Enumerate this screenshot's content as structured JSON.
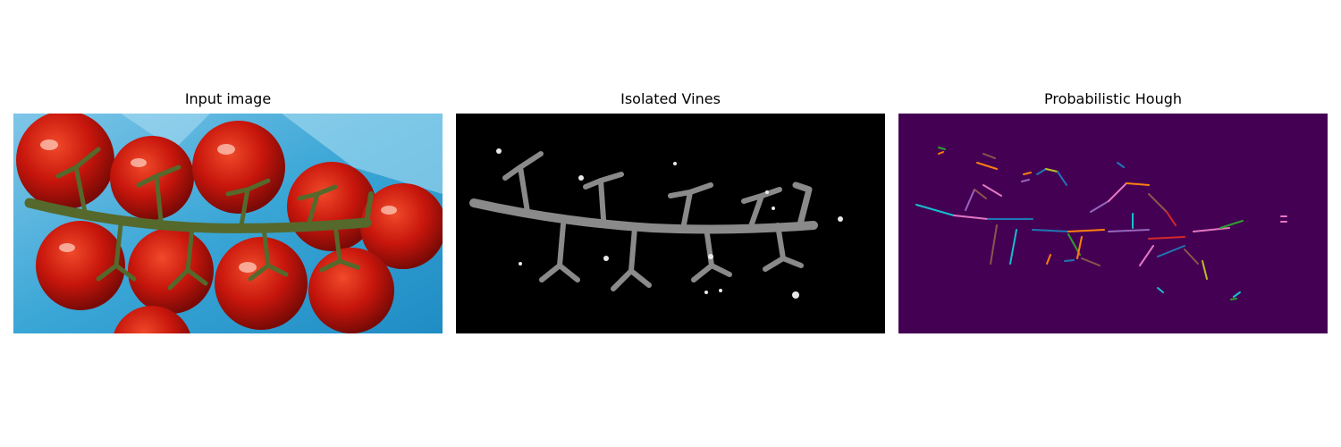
{
  "figure": {
    "panels": [
      {
        "title": "Input image"
      },
      {
        "title": "Isolated Vines"
      },
      {
        "title": "Probabilistic Hough"
      }
    ]
  },
  "colors": {
    "background_blue": "#3aa6d6",
    "tomato_red": "#c8160c",
    "vine_green": "#55692c",
    "hough_background": "#440154",
    "hough_palette": [
      "#1f77b4",
      "#ff7f0e",
      "#2ca02c",
      "#d62728",
      "#9467bd",
      "#8c564b",
      "#e377c2",
      "#7f7f7f",
      "#bcbd22",
      "#17becf"
    ]
  }
}
